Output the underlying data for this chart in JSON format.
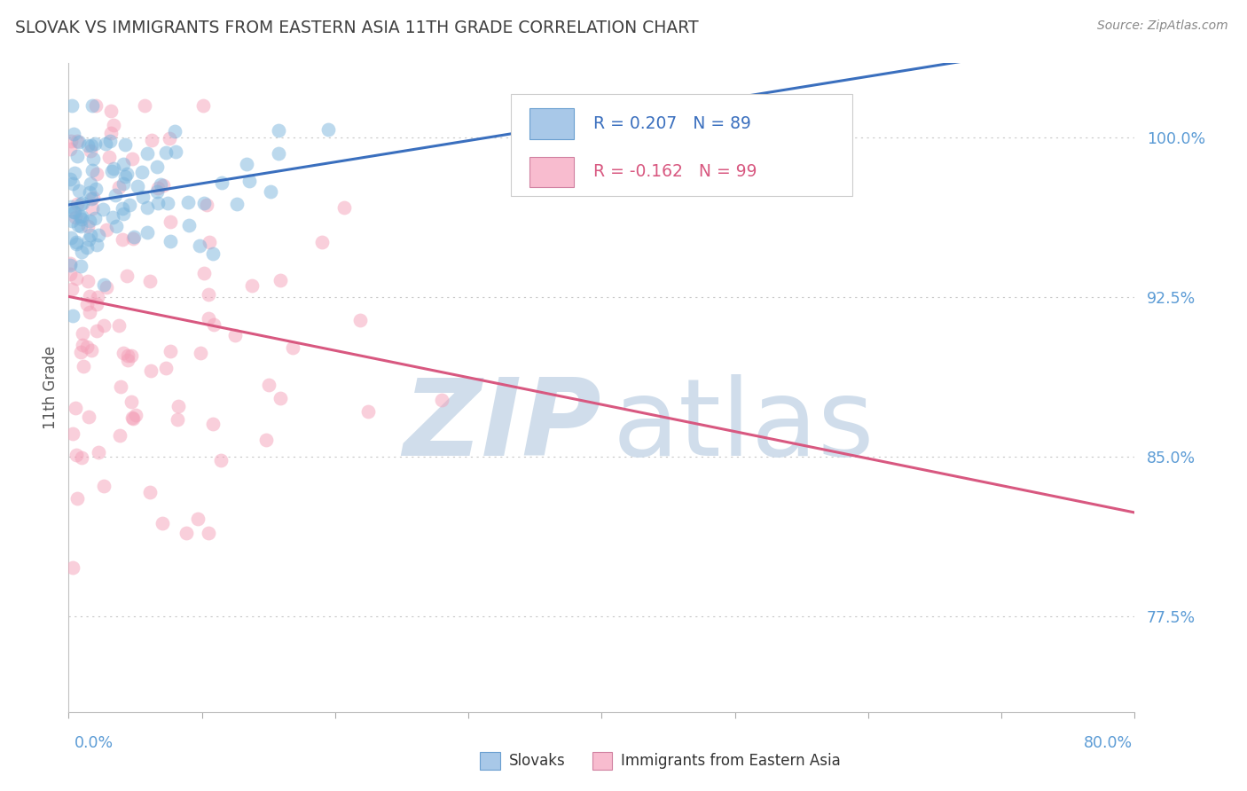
{
  "title": "SLOVAK VS IMMIGRANTS FROM EASTERN ASIA 11TH GRADE CORRELATION CHART",
  "source": "Source: ZipAtlas.com",
  "ylabel": "11th Grade",
  "xlim": [
    0.0,
    80.0
  ],
  "ylim": [
    73.0,
    103.5
  ],
  "yticks": [
    77.5,
    85.0,
    92.5,
    100.0
  ],
  "ytick_labels": [
    "77.5%",
    "85.0%",
    "92.5%",
    "100.0%"
  ],
  "series1_name": "Slovaks",
  "series1_color": "#7ab4dc",
  "series1_line_color": "#3a6fbe",
  "series1_R": 0.207,
  "series1_N": 89,
  "series2_name": "Immigrants from Eastern Asia",
  "series2_color": "#f4a0b8",
  "series2_line_color": "#d85880",
  "series2_R": -0.162,
  "series2_N": 99,
  "legend_box_color1": "#a8c8e8",
  "legend_box_color2": "#f8bccf",
  "legend_text_color1": "#3a6fbe",
  "legend_text_color2": "#d85880",
  "watermark_color": "#c8d8e8",
  "background_color": "#ffffff",
  "title_color": "#404040",
  "axis_label_color": "#5b9bd5",
  "ylabel_color": "#555555",
  "dot_alpha": 0.5,
  "dot_size": 130,
  "trend_linewidth": 2.2,
  "seed1": 42,
  "seed2": 99
}
